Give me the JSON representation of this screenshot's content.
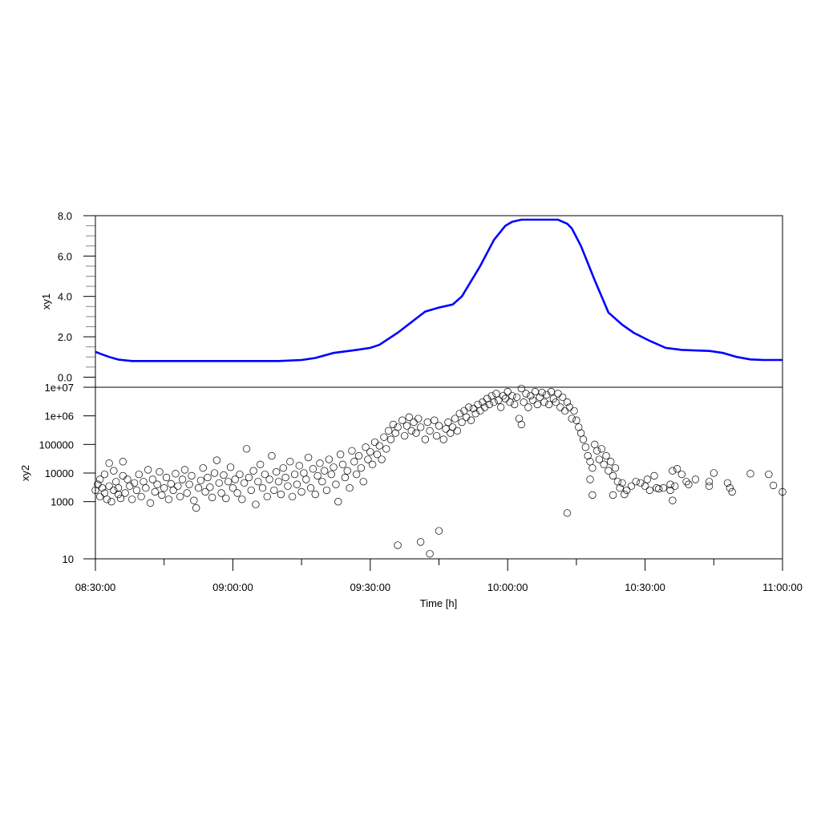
{
  "chart_data": [
    {
      "type": "line",
      "ylabel": "xy1",
      "ylim": [
        -0.5,
        8.0
      ],
      "yticks": [
        "0.0",
        "2.0",
        "4.0",
        "6.0",
        "8.0"
      ],
      "ytick_values": [
        0,
        2,
        4,
        6,
        8
      ],
      "series": [
        {
          "name": "xy1",
          "color": "#0000ff",
          "x_minutes": [
            0,
            3,
            5,
            8,
            10,
            20,
            30,
            40,
            45,
            48,
            52,
            57,
            60,
            62,
            66,
            70,
            72,
            75,
            78,
            80,
            84,
            87,
            89.5,
            91,
            93,
            97,
            101,
            103,
            104,
            106,
            109,
            112,
            115,
            117.5,
            121,
            124.5,
            128,
            131.5,
            134,
            137,
            140,
            143,
            146,
            150
          ],
          "y": [
            1.25,
            1.0,
            0.87,
            0.8,
            0.8,
            0.8,
            0.8,
            0.8,
            0.85,
            0.95,
            1.2,
            1.35,
            1.45,
            1.6,
            2.2,
            2.9,
            3.25,
            3.45,
            3.6,
            4.0,
            5.5,
            6.8,
            7.5,
            7.7,
            7.8,
            7.8,
            7.8,
            7.6,
            7.37,
            6.5,
            4.8,
            3.2,
            2.6,
            2.2,
            1.8,
            1.45,
            1.35,
            1.32,
            1.3,
            1.2,
            1.0,
            0.88,
            0.85,
            0.85
          ]
        }
      ]
    },
    {
      "type": "scatter",
      "ylabel": "xy2",
      "xlabel": "Time [h]",
      "yscale": "log",
      "ylim": [
        10,
        10000000
      ],
      "yticks": [
        "10",
        "1000",
        "10000",
        "100000",
        "1e+06",
        "1e+07"
      ],
      "ytick_values": [
        10,
        1000,
        10000,
        100000,
        1000000,
        10000000
      ],
      "xticks": [
        "08:30:00",
        "09:00:00",
        "09:30:00",
        "10:00:00",
        "10:30:00",
        "11:00:00"
      ],
      "xtick_minutes": [
        0,
        30,
        60,
        90,
        120,
        150
      ],
      "points": [
        [
          0,
          2500
        ],
        [
          0.5,
          4000
        ],
        [
          1,
          1500
        ],
        [
          1,
          6000
        ],
        [
          1.5,
          3000
        ],
        [
          2,
          2000
        ],
        [
          2,
          9000
        ],
        [
          2.5,
          1200
        ],
        [
          3,
          3500
        ],
        [
          3,
          22000
        ],
        [
          3.5,
          1000
        ],
        [
          4,
          2500
        ],
        [
          4,
          12000
        ],
        [
          4.5,
          5000
        ],
        [
          5,
          1800
        ],
        [
          5,
          3000
        ],
        [
          5.5,
          1300
        ],
        [
          6,
          8000
        ],
        [
          6,
          25000
        ],
        [
          6.5,
          2000
        ],
        [
          7,
          6000
        ],
        [
          7.5,
          3500
        ],
        [
          8,
          1200
        ],
        [
          8.5,
          4500
        ],
        [
          9,
          2500
        ],
        [
          9.5,
          9000
        ],
        [
          10,
          1500
        ],
        [
          10.5,
          5000
        ],
        [
          11,
          3000
        ],
        [
          11.5,
          13000
        ],
        [
          12,
          900
        ],
        [
          12.5,
          6000
        ],
        [
          13,
          2200
        ],
        [
          13.5,
          4000
        ],
        [
          14,
          11000
        ],
        [
          14.5,
          1700
        ],
        [
          15,
          3000
        ],
        [
          15.5,
          7000
        ],
        [
          16,
          1200
        ],
        [
          16.5,
          4200
        ],
        [
          17,
          2500
        ],
        [
          17.5,
          9500
        ],
        [
          18,
          3500
        ],
        [
          18.5,
          1500
        ],
        [
          19,
          6000
        ],
        [
          19.5,
          13000
        ],
        [
          20,
          2000
        ],
        [
          20.5,
          4000
        ],
        [
          21,
          8000
        ],
        [
          21.5,
          1100
        ],
        [
          22,
          600
        ],
        [
          22.5,
          3000
        ],
        [
          23,
          5500
        ],
        [
          23.5,
          15000
        ],
        [
          24,
          2200
        ],
        [
          24.5,
          7000
        ],
        [
          25,
          3200
        ],
        [
          25.5,
          1400
        ],
        [
          26,
          10000
        ],
        [
          26.5,
          28000
        ],
        [
          27,
          4500
        ],
        [
          27.5,
          2000
        ],
        [
          28,
          8500
        ],
        [
          28.5,
          1300
        ],
        [
          29,
          5000
        ],
        [
          29.5,
          16000
        ],
        [
          30,
          3000
        ],
        [
          30.5,
          6000
        ],
        [
          31,
          2000
        ],
        [
          31.5,
          9000
        ],
        [
          32,
          1200
        ],
        [
          32.5,
          4500
        ],
        [
          33,
          70000
        ],
        [
          33.5,
          7000
        ],
        [
          34,
          2500
        ],
        [
          34.5,
          12000
        ],
        [
          35,
          800
        ],
        [
          35.5,
          5000
        ],
        [
          36,
          20000
        ],
        [
          36.5,
          3000
        ],
        [
          37,
          9000
        ],
        [
          37.5,
          1500
        ],
        [
          38,
          6000
        ],
        [
          38.5,
          40000
        ],
        [
          39,
          2500
        ],
        [
          39.5,
          11000
        ],
        [
          40,
          5000
        ],
        [
          40.5,
          1800
        ],
        [
          41,
          15000
        ],
        [
          41.5,
          7000
        ],
        [
          42,
          3500
        ],
        [
          42.5,
          25000
        ],
        [
          43,
          1500
        ],
        [
          43.5,
          9000
        ],
        [
          44,
          4000
        ],
        [
          44.5,
          18000
        ],
        [
          45,
          2200
        ],
        [
          45.5,
          10000
        ],
        [
          46,
          6000
        ],
        [
          46.5,
          35000
        ],
        [
          47,
          3000
        ],
        [
          47.5,
          14000
        ],
        [
          48,
          1800
        ],
        [
          48.5,
          8000
        ],
        [
          49,
          22000
        ],
        [
          49.5,
          5000
        ],
        [
          50,
          12000
        ],
        [
          50.5,
          2500
        ],
        [
          51,
          30000
        ],
        [
          51.5,
          9000
        ],
        [
          52,
          16000
        ],
        [
          52.5,
          4000
        ],
        [
          53,
          1000
        ],
        [
          53.5,
          45000
        ],
        [
          54,
          20000
        ],
        [
          54.5,
          7000
        ],
        [
          55,
          12000
        ],
        [
          55.5,
          3000
        ],
        [
          56,
          60000
        ],
        [
          56.5,
          25000
        ],
        [
          57,
          9000
        ],
        [
          57.5,
          40000
        ],
        [
          58,
          15000
        ],
        [
          58.5,
          5000
        ],
        [
          59,
          80000
        ],
        [
          59.5,
          30000
        ],
        [
          60,
          55000
        ],
        [
          60.5,
          20000
        ],
        [
          61,
          120000
        ],
        [
          61.5,
          45000
        ],
        [
          62,
          90000
        ],
        [
          62.5,
          30000
        ],
        [
          63,
          180000
        ],
        [
          63.5,
          70000
        ],
        [
          64,
          300000
        ],
        [
          64.5,
          150000
        ],
        [
          65,
          500000
        ],
        [
          65.5,
          250000
        ],
        [
          66,
          30
        ],
        [
          66,
          400000
        ],
        [
          67,
          700000
        ],
        [
          67.5,
          200000
        ],
        [
          68,
          450000
        ],
        [
          68.5,
          900000
        ],
        [
          69,
          300000
        ],
        [
          69.5,
          600000
        ],
        [
          70,
          250000
        ],
        [
          70.5,
          800000
        ],
        [
          71,
          39
        ],
        [
          71,
          400000
        ],
        [
          72,
          150000
        ],
        [
          72.5,
          600000
        ],
        [
          73,
          15
        ],
        [
          73,
          300000
        ],
        [
          74,
          700000
        ],
        [
          74.5,
          200000
        ],
        [
          75,
          95
        ],
        [
          75,
          450000
        ],
        [
          76,
          150000
        ],
        [
          76.5,
          350000
        ],
        [
          77,
          600000
        ],
        [
          77.5,
          250000
        ],
        [
          78,
          400000
        ],
        [
          78.5,
          800000
        ],
        [
          79,
          300000
        ],
        [
          79.5,
          1200000
        ],
        [
          80,
          600000
        ],
        [
          80.5,
          1500000
        ],
        [
          81,
          900000
        ],
        [
          81.5,
          2000000
        ],
        [
          82,
          700000
        ],
        [
          82.5,
          1800000
        ],
        [
          83,
          1200000
        ],
        [
          83.5,
          2500000
        ],
        [
          84,
          1500000
        ],
        [
          84.5,
          3000000
        ],
        [
          85,
          2000000
        ],
        [
          85.5,
          4000000
        ],
        [
          86,
          2500000
        ],
        [
          86.5,
          5000000
        ],
        [
          87,
          3000000
        ],
        [
          87.5,
          6000000
        ],
        [
          88,
          3500000
        ],
        [
          88.5,
          2000000
        ],
        [
          89,
          5000000
        ],
        [
          89.5,
          4000000
        ],
        [
          90,
          7000000
        ],
        [
          90.5,
          3000000
        ],
        [
          91,
          5000000
        ],
        [
          91.5,
          2500000
        ],
        [
          92,
          4500000
        ],
        [
          92.5,
          800000
        ],
        [
          93,
          9000000
        ],
        [
          93,
          500000
        ],
        [
          93.5,
          3000000
        ],
        [
          94,
          6000000
        ],
        [
          94.5,
          2000000
        ],
        [
          95,
          5000000
        ],
        [
          95.5,
          3500000
        ],
        [
          96,
          7000000
        ],
        [
          96.5,
          2500000
        ],
        [
          97,
          4500000
        ],
        [
          97.5,
          6500000
        ],
        [
          98,
          3000000
        ],
        [
          98.5,
          5500000
        ],
        [
          99,
          2500000
        ],
        [
          99.5,
          7000000
        ],
        [
          100,
          4000000
        ],
        [
          100.5,
          3000000
        ],
        [
          101,
          6000000
        ],
        [
          101.5,
          2000000
        ],
        [
          102,
          4500000
        ],
        [
          102.5,
          1500000
        ],
        [
          103,
          3000000
        ],
        [
          103,
          400
        ],
        [
          103.5,
          2000000
        ],
        [
          104,
          800000
        ],
        [
          104.5,
          1500000
        ],
        [
          105,
          700000
        ],
        [
          105.5,
          400000
        ],
        [
          106,
          250000
        ],
        [
          106.5,
          150000
        ],
        [
          107,
          80000
        ],
        [
          107.5,
          40000
        ],
        [
          108,
          25000
        ],
        [
          108,
          6000
        ],
        [
          108.5,
          15000
        ],
        [
          108.5,
          1700
        ],
        [
          109,
          100000
        ],
        [
          109.5,
          60000
        ],
        [
          110,
          30000
        ],
        [
          110.5,
          70000
        ],
        [
          111,
          20000
        ],
        [
          111.5,
          40000
        ],
        [
          112,
          12000
        ],
        [
          112.5,
          25000
        ],
        [
          113,
          8000
        ],
        [
          113,
          1700
        ],
        [
          113.5,
          15000
        ],
        [
          114,
          5000
        ],
        [
          114.5,
          3000
        ],
        [
          115,
          4500
        ],
        [
          115.5,
          1800
        ],
        [
          116,
          2500
        ],
        [
          117,
          3500
        ],
        [
          118,
          5000
        ],
        [
          119,
          4500
        ],
        [
          120,
          3500
        ],
        [
          120.5,
          6000
        ],
        [
          121,
          2500
        ],
        [
          122,
          8000
        ],
        [
          122.5,
          3000
        ],
        [
          123,
          2800
        ],
        [
          124,
          3000
        ],
        [
          125.5,
          4000
        ],
        [
          125.5,
          2500
        ],
        [
          126,
          12000
        ],
        [
          126,
          1100
        ],
        [
          126.5,
          3500
        ],
        [
          127,
          14000
        ],
        [
          128,
          9000
        ],
        [
          129,
          5000
        ],
        [
          129.5,
          4000
        ],
        [
          131,
          6000
        ],
        [
          134,
          3500
        ],
        [
          134,
          5000
        ],
        [
          135,
          10000
        ],
        [
          138,
          4500
        ],
        [
          138.5,
          3000
        ],
        [
          139,
          2200
        ],
        [
          143,
          9500
        ],
        [
          147,
          9000
        ],
        [
          148,
          3700
        ],
        [
          150,
          2200
        ]
      ]
    }
  ],
  "axis": {
    "x_label": "Time [h]"
  }
}
